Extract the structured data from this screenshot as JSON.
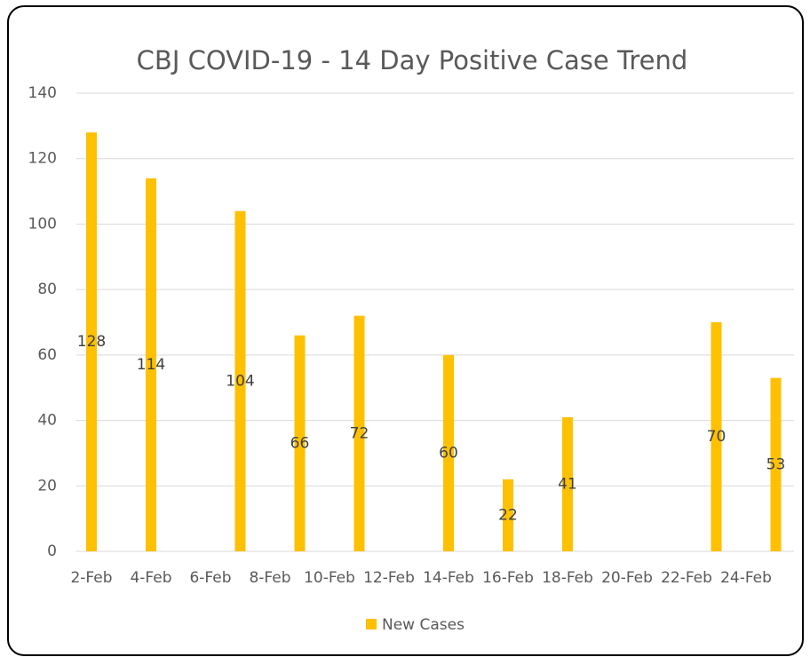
{
  "chart_data": {
    "type": "bar",
    "title": "CBJ COVID-19 - 14 Day Positive Case Trend",
    "categories": [
      "2-Feb",
      null,
      "4-Feb",
      null,
      "6-Feb",
      null,
      "8-Feb",
      null,
      "10-Feb",
      null,
      "12-Feb",
      null,
      "14-Feb",
      null,
      "16-Feb",
      null,
      "18-Feb",
      null,
      "20-Feb",
      null,
      "22-Feb",
      null,
      "24-Feb",
      null
    ],
    "series": [
      {
        "name": "New Cases",
        "color": "#ffc000",
        "values": [
          128,
          null,
          114,
          null,
          null,
          104,
          null,
          66,
          null,
          72,
          null,
          null,
          60,
          null,
          22,
          null,
          41,
          null,
          null,
          null,
          null,
          70,
          null,
          53
        ]
      }
    ],
    "ylim": [
      0,
      140
    ],
    "yticks": [
      0,
      20,
      40,
      60,
      80,
      100,
      120,
      140
    ],
    "grid": true,
    "legend": "bottom"
  }
}
